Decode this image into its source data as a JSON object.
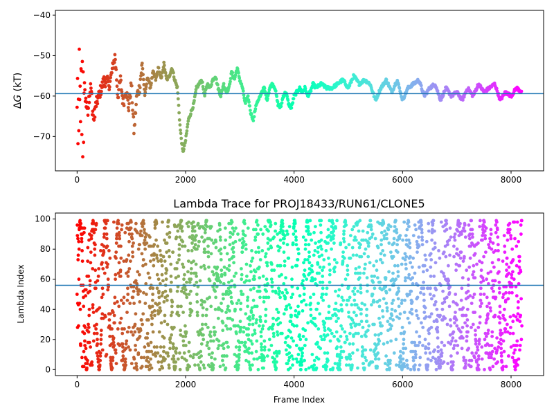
{
  "chart_data": [
    {
      "type": "scatter",
      "title": "",
      "xlabel": "",
      "ylabel": "ΔG (kT)",
      "ylabel_parts": {
        "symbol": "ΔG",
        "italic_part": "G",
        "unit": " (kT)"
      },
      "xlim": [
        -400,
        8600
      ],
      "ylim": [
        -78.5,
        -38.8
      ],
      "xticks": [
        0,
        2000,
        4000,
        6000,
        8000
      ],
      "xtick_labels": [
        "0",
        "2000",
        "4000",
        "6000",
        "8000"
      ],
      "yticks": [
        -70,
        -60,
        -50,
        -40
      ],
      "ytick_labels": [
        "−70",
        "−60",
        "−50",
        "−40"
      ],
      "hline": -59.4,
      "colormap": "rainbow (reversed with frame index: red early → violet late)",
      "n_frames": 8200,
      "grid": false,
      "trace_keypoints": {
        "x": [
          0,
          30,
          60,
          100,
          150,
          200,
          250,
          300,
          350,
          400,
          450,
          500,
          600,
          700,
          750,
          800,
          850,
          900,
          950,
          1000,
          1050,
          1100,
          1150,
          1200,
          1250,
          1300,
          1350,
          1400,
          1450,
          1500,
          1550,
          1600,
          1650,
          1700,
          1750,
          1800,
          1850,
          1900,
          1950,
          2000,
          2050,
          2100,
          2150,
          2200,
          2250,
          2300,
          2350,
          2400,
          2450,
          2500,
          2550,
          2600,
          2650,
          2700,
          2750,
          2800,
          2850,
          2900,
          2950,
          3000,
          3050,
          3100,
          3150,
          3200,
          3250,
          3300,
          3350,
          3400,
          3450,
          3500,
          3550,
          3600,
          3650,
          3700,
          3750,
          3800,
          3850,
          3900,
          3950,
          4000,
          4050,
          4100,
          4150,
          4200,
          4250,
          4300,
          4350,
          4400,
          4500,
          4600,
          4700,
          4800,
          4900,
          5000,
          5100,
          5200,
          5300,
          5400,
          5500,
          5600,
          5700,
          5800,
          5900,
          6000,
          6100,
          6200,
          6300,
          6400,
          6500,
          6600,
          6700,
          6800,
          6900,
          7000,
          7100,
          7200,
          7300,
          7400,
          7500,
          7600,
          7700,
          7800,
          7900,
          8000,
          8100,
          8200
        ],
        "y": [
          -55,
          -63,
          -58,
          -52,
          -60,
          -64,
          -56,
          -66,
          -62,
          -60,
          -58,
          -56,
          -57,
          -50,
          -60,
          -56,
          -62,
          -58,
          -63,
          -57,
          -69,
          -60,
          -58,
          -52,
          -60,
          -55,
          -58,
          -54,
          -56,
          -53,
          -56,
          -52,
          -56,
          -55,
          -53,
          -56,
          -58,
          -68,
          -74,
          -71,
          -66,
          -64,
          -62,
          -58,
          -57,
          -56,
          -60,
          -57,
          -58,
          -56,
          -55,
          -58,
          -60,
          -57,
          -59,
          -58,
          -54,
          -56,
          -53,
          -56,
          -58,
          -62,
          -60,
          -64,
          -66,
          -62,
          -61,
          -59,
          -58,
          -61,
          -58,
          -57,
          -58,
          -62,
          -63,
          -60,
          -59,
          -62,
          -63,
          -60,
          -59,
          -58,
          -59,
          -58,
          -60,
          -59,
          -57,
          -58,
          -57,
          -58,
          -58,
          -57,
          -56,
          -58,
          -55,
          -57,
          -56,
          -57,
          -61,
          -58,
          -56,
          -59,
          -56,
          -61,
          -58,
          -57,
          -56,
          -60,
          -58,
          -57,
          -61,
          -58,
          -60,
          -59,
          -61,
          -58,
          -60,
          -57,
          -59,
          -58,
          -57,
          -61,
          -59,
          -60,
          -58,
          -59
        ]
      }
    },
    {
      "type": "scatter",
      "title": "Lambda Trace for PROJ18433/RUN61/CLONE5",
      "xlabel": "Frame Index",
      "ylabel": "Lambda Index",
      "xlim": [
        -400,
        8600
      ],
      "ylim": [
        -4,
        104
      ],
      "xticks": [
        0,
        2000,
        4000,
        6000,
        8000
      ],
      "xtick_labels": [
        "0",
        "2000",
        "4000",
        "6000",
        "8000"
      ],
      "yticks": [
        0,
        20,
        40,
        60,
        80,
        100
      ],
      "ytick_labels": [
        "0",
        "20",
        "40",
        "60",
        "80",
        "100"
      ],
      "hline": 56,
      "y_range": [
        0,
        99
      ],
      "colormap": "rainbow (reversed with frame index: red early → violet late)",
      "n_frames": 8200,
      "grid": false
    }
  ]
}
